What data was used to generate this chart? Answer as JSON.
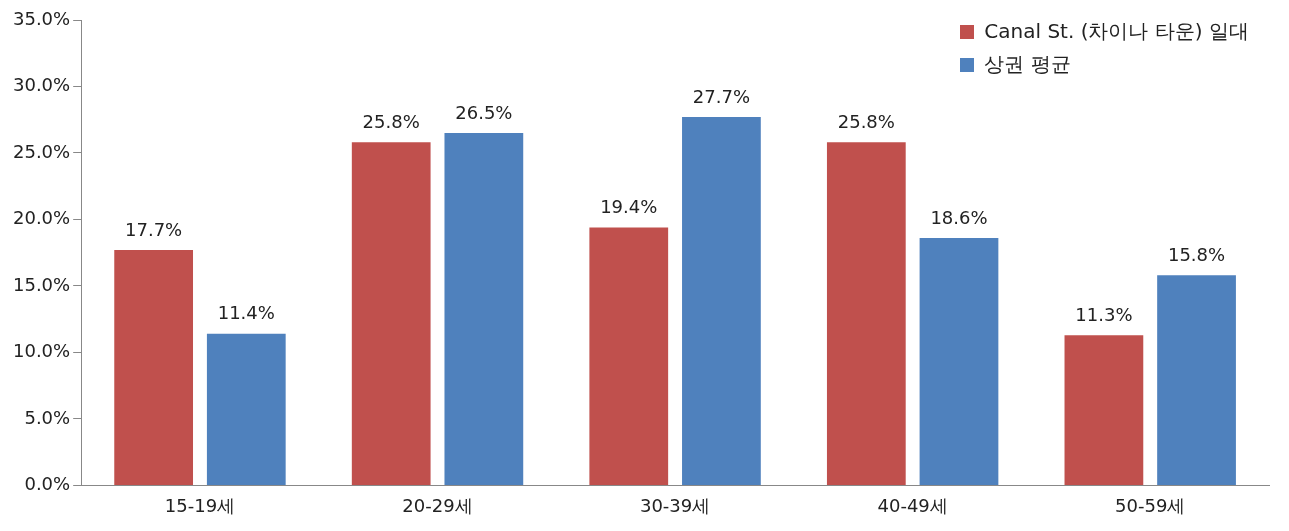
{
  "chart_data": {
    "type": "bar",
    "categories": [
      "15-19세",
      "20-29세",
      "30-39세",
      "40-49세",
      "50-59세"
    ],
    "series": [
      {
        "name": "Canal St. (차이나 타운) 일대",
        "color": "#c0504d",
        "values": [
          17.7,
          25.8,
          19.4,
          25.8,
          11.3
        ],
        "value_labels": [
          "17.7%",
          "25.8%",
          "19.4%",
          "25.8%",
          "11.3%"
        ]
      },
      {
        "name": "상권 평균",
        "color": "#4f81bd",
        "values": [
          11.4,
          26.5,
          27.7,
          18.6,
          15.8
        ],
        "value_labels": [
          "11.4%",
          "26.5%",
          "27.7%",
          "18.6%",
          "15.8%"
        ]
      }
    ],
    "ylim": [
      0,
      35
    ],
    "yticks": [
      {
        "value": 0,
        "label": "0.0%"
      },
      {
        "value": 5,
        "label": "5.0%"
      },
      {
        "value": 10,
        "label": "10.0%"
      },
      {
        "value": 15,
        "label": "15.0%"
      },
      {
        "value": 20,
        "label": "20.0%"
      },
      {
        "value": 25,
        "label": "25.0%"
      },
      {
        "value": 30,
        "label": "30.0%"
      },
      {
        "value": 35,
        "label": "35.0%"
      }
    ],
    "grid": false,
    "legend": "top right"
  }
}
